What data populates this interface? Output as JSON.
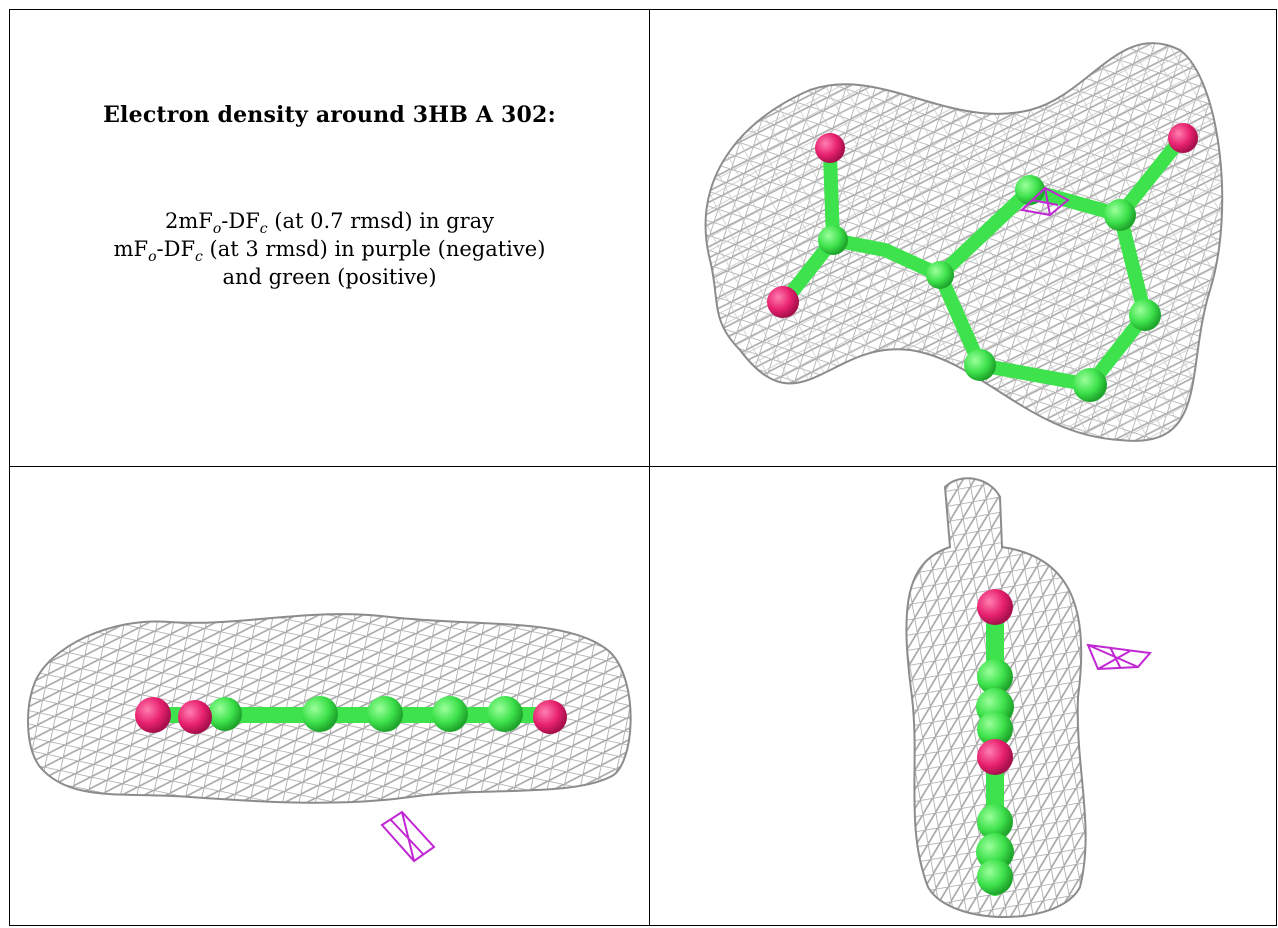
{
  "title": "Electron density around 3HB A 302:",
  "legend": {
    "line1": {
      "prefix": "2mF",
      "sub1": "o",
      "mid": "-DF",
      "sub2": "c",
      "suffix": " (at 0.7 rmsd) in gray"
    },
    "line2": {
      "prefix": "mF",
      "sub1": "o",
      "mid": "-DF",
      "sub2": "c",
      "suffix": " (at 3 rmsd) in purple (negative)"
    },
    "line3": "and green (positive)"
  },
  "colors": {
    "mesh_gray": "#9e9e9e",
    "difference_negative": "#c026d3",
    "carbon_green": "#3ee24c",
    "oxygen_pink": "#e8216f",
    "border": "#000000"
  },
  "views": [
    "top-right",
    "bottom-left",
    "bottom-right"
  ]
}
